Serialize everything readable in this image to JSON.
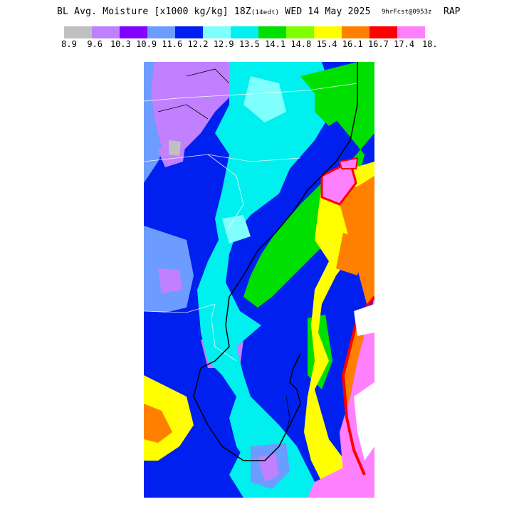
{
  "header": {
    "title_main": "BL Avg. Moisture [x1000 kg/kg] 18Z",
    "title_local": "(14edt)",
    "title_date": " WED 14 May 2025",
    "forecast_tag": "9hrFcst@0953z",
    "model": "RAP"
  },
  "legend": {
    "colors": [
      "#c0c0c0",
      "#c080ff",
      "#8000ff",
      "#6c9cff",
      "#0020f0",
      "#80ffff",
      "#00f0f0",
      "#00e000",
      "#80ff00",
      "#ffff00",
      "#ff8000",
      "#ff0000",
      "#ff80ff"
    ],
    "ticks": [
      "8.9",
      "9.6",
      "10.3",
      "10.9",
      "11.6",
      "12.2",
      "12.9",
      "13.5",
      "14.1",
      "14.8",
      "15.4",
      "16.1",
      "16.7",
      "17.4",
      "18."
    ]
  },
  "map": {
    "region": "southeast-us-coast",
    "field": "boundary-layer-average-moisture"
  }
}
